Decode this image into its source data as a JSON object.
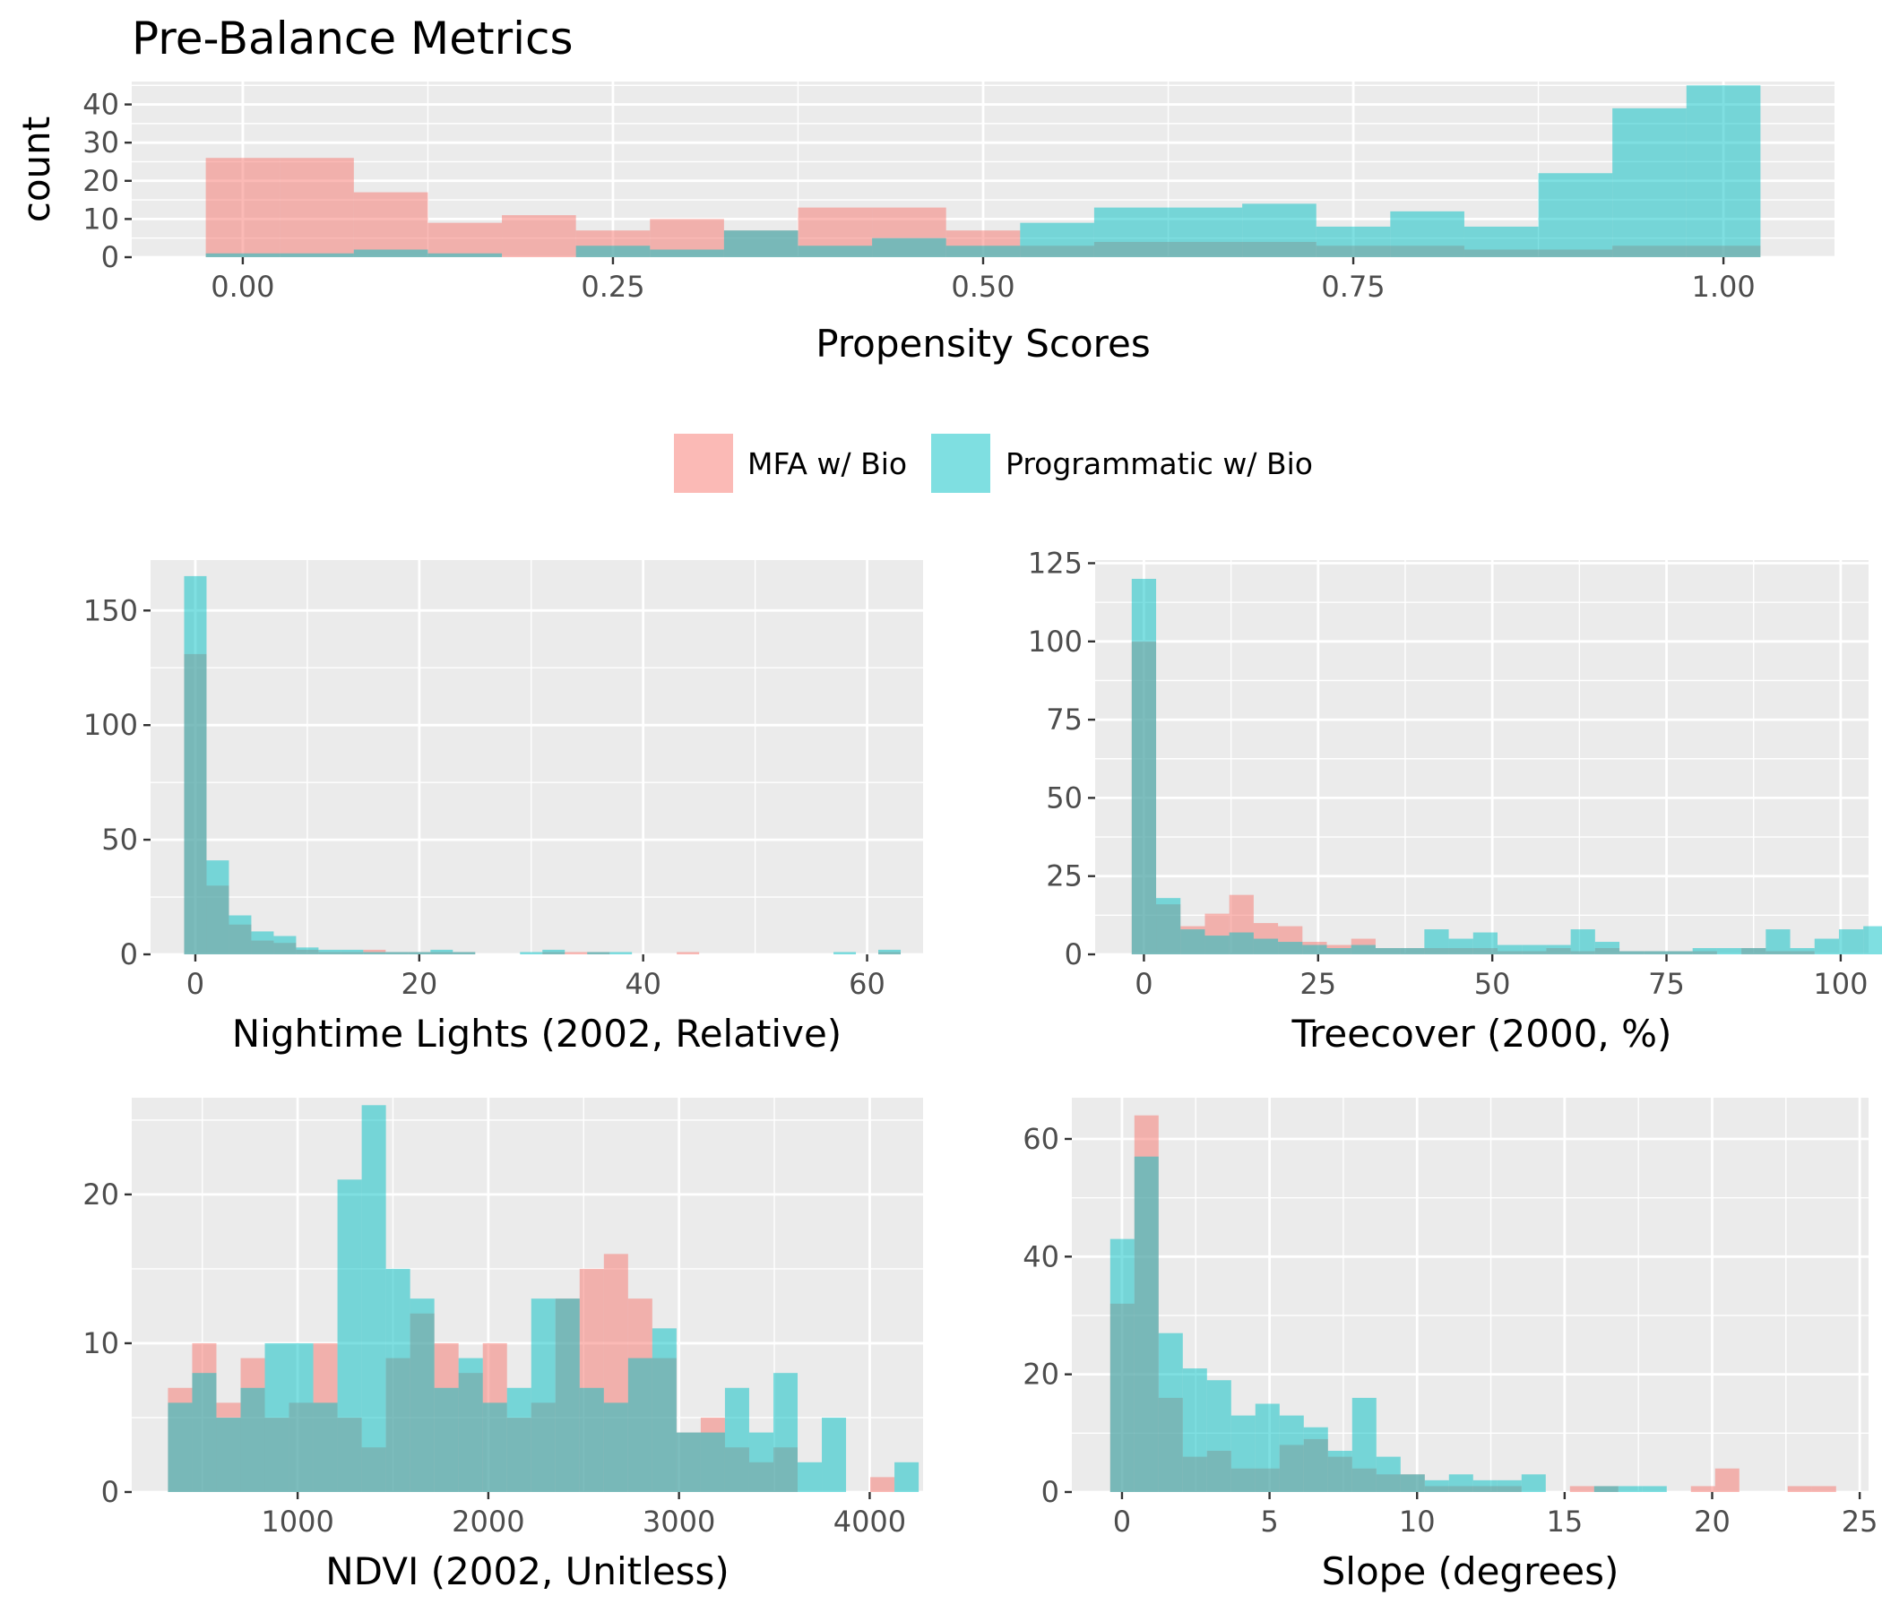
{
  "title": "Pre-Balance Metrics",
  "colors": {
    "mfa": "#F8766D",
    "programmatic": "#00BFC4",
    "panel_bg": "#EBEBEB",
    "grid": "#FFFFFF"
  },
  "legend": {
    "placement": "center",
    "items": [
      {
        "key": "mfa",
        "label": "MFA w/ Bio"
      },
      {
        "key": "programmatic",
        "label": "Programmatic w/ Bio"
      }
    ]
  },
  "chart_data": [
    {
      "type": "bar",
      "subtype": "histogram",
      "xlabel": "Propensity Scores",
      "ylabel": "count",
      "xlim": [
        -0.075,
        1.075
      ],
      "ylim": [
        0,
        46
      ],
      "xticks": [
        0,
        0.25,
        0.5,
        0.75,
        1
      ],
      "xtick_labels": [
        "0.00",
        "0.25",
        "0.50",
        "0.75",
        "1.00"
      ],
      "yticks": [
        0,
        10,
        20,
        30,
        40
      ],
      "ytick_labels": [
        "0",
        "10",
        "20",
        "30",
        "40"
      ],
      "bin_start": -0.025,
      "bin_width": 0.05,
      "series": [
        {
          "name": "MFA w/ Bio",
          "key": "mfa",
          "values": [
            26,
            26,
            17,
            9,
            11,
            7,
            10,
            7,
            13,
            13,
            7,
            3,
            4,
            4,
            4,
            3,
            3,
            2,
            2,
            3,
            3
          ]
        },
        {
          "name": "Programmatic w/ Bio",
          "key": "programmatic",
          "values": [
            1,
            1,
            2,
            1,
            0,
            3,
            2,
            7,
            3,
            5,
            3,
            9,
            13,
            13,
            14,
            8,
            12,
            8,
            22,
            39,
            45
          ]
        }
      ]
    },
    {
      "type": "bar",
      "subtype": "histogram",
      "xlabel": "Nightime Lights (2002, Relative)",
      "xlim": [
        -4,
        65
      ],
      "ylim": [
        0,
        172
      ],
      "xticks": [
        0,
        20,
        40,
        60
      ],
      "xtick_labels": [
        "0",
        "20",
        "40",
        "60"
      ],
      "yticks": [
        0,
        50,
        100,
        150
      ],
      "ytick_labels": [
        "0",
        "50",
        "100",
        "150"
      ],
      "bin_start": -1,
      "bin_width": 2,
      "series": [
        {
          "name": "MFA w/ Bio",
          "key": "mfa",
          "values": [
            131,
            30,
            13,
            6,
            5,
            2,
            1,
            1,
            2,
            1,
            1,
            1,
            1,
            0,
            0,
            0,
            1,
            1,
            1,
            0,
            0,
            0,
            1,
            0,
            0,
            0,
            0,
            0,
            0,
            0,
            0,
            1
          ]
        },
        {
          "name": "Programmatic w/ Bio",
          "key": "programmatic",
          "values": [
            165,
            41,
            17,
            10,
            8,
            3,
            2,
            2,
            1,
            1,
            1,
            2,
            1,
            0,
            0,
            1,
            2,
            0,
            1,
            1,
            0,
            0,
            0,
            0,
            0,
            0,
            0,
            0,
            0,
            1,
            0,
            2
          ]
        }
      ]
    },
    {
      "type": "bar",
      "subtype": "histogram",
      "xlabel": "Treecover (2000, %)",
      "xlim": [
        -7,
        104
      ],
      "ylim": [
        0,
        126
      ],
      "xticks": [
        0,
        25,
        50,
        75,
        100
      ],
      "xtick_labels": [
        "0",
        "25",
        "50",
        "75",
        "100"
      ],
      "yticks": [
        0,
        25,
        50,
        75,
        100,
        125
      ],
      "ytick_labels": [
        "0",
        "25",
        "50",
        "75",
        "100",
        "125"
      ],
      "bin_start": -1.75,
      "bin_width": 3.5,
      "series": [
        {
          "name": "MFA w/ Bio",
          "key": "mfa",
          "values": [
            100,
            16,
            9,
            13,
            19,
            10,
            9,
            4,
            3,
            5,
            2,
            2,
            2,
            2,
            2,
            1,
            1,
            2,
            1,
            2,
            1,
            1,
            1,
            1,
            0,
            2,
            1,
            1,
            0,
            0,
            0,
            0,
            0
          ]
        },
        {
          "name": "Programmatic w/ Bio",
          "key": "programmatic",
          "values": [
            120,
            18,
            8,
            6,
            7,
            5,
            4,
            3,
            2,
            3,
            2,
            2,
            8,
            5,
            7,
            3,
            3,
            3,
            8,
            4,
            1,
            1,
            1,
            2,
            2,
            2,
            8,
            2,
            5,
            8,
            9,
            0,
            5
          ]
        }
      ]
    },
    {
      "type": "bar",
      "subtype": "histogram",
      "xlabel": "NDVI (2002, Unitless)",
      "xlim": [
        130,
        4280
      ],
      "ylim": [
        0,
        26.5
      ],
      "xticks": [
        1000,
        2000,
        3000,
        4000
      ],
      "xtick_labels": [
        "1000",
        "2000",
        "3000",
        "4000"
      ],
      "yticks": [
        0,
        10,
        20
      ],
      "ytick_labels": [
        "0",
        "10",
        "20"
      ],
      "bin_start": 320,
      "bin_width": 127,
      "series": [
        {
          "name": "MFA w/ Bio",
          "key": "mfa",
          "values": [
            7,
            10,
            6,
            9,
            5,
            6,
            10,
            5,
            3,
            9,
            12,
            10,
            8,
            10,
            5,
            6,
            13,
            15,
            16,
            13,
            9,
            4,
            5,
            3,
            2,
            3,
            0,
            0,
            0,
            1,
            0
          ]
        },
        {
          "name": "Programmatic w/ Bio",
          "key": "programmatic",
          "values": [
            6,
            8,
            5,
            7,
            10,
            10,
            6,
            21,
            26,
            15,
            13,
            7,
            9,
            6,
            7,
            13,
            13,
            7,
            6,
            9,
            11,
            4,
            4,
            7,
            4,
            8,
            2,
            5,
            0,
            0,
            2
          ]
        }
      ]
    },
    {
      "type": "bar",
      "subtype": "histogram",
      "xlabel": "Slope (degrees)",
      "xlim": [
        -1.7,
        25.3
      ],
      "ylim": [
        0,
        67
      ],
      "xticks": [
        0,
        5,
        10,
        15,
        20,
        25
      ],
      "xtick_labels": [
        "0",
        "5",
        "10",
        "15",
        "20",
        "25"
      ],
      "yticks": [
        0,
        20,
        40,
        60
      ],
      "ytick_labels": [
        "0",
        "20",
        "40",
        "60"
      ],
      "bin_start": -0.4,
      "bin_width": 0.82,
      "series": [
        {
          "name": "MFA w/ Bio",
          "key": "mfa",
          "values": [
            32,
            64,
            16,
            6,
            7,
            4,
            4,
            8,
            9,
            6,
            4,
            3,
            3,
            1,
            1,
            1,
            1,
            0,
            0,
            1,
            1,
            0,
            0,
            0,
            1,
            4,
            0,
            0,
            1,
            1
          ]
        },
        {
          "name": "Programmatic w/ Bio",
          "key": "programmatic",
          "values": [
            43,
            57,
            27,
            21,
            19,
            13,
            15,
            13,
            11,
            7,
            16,
            6,
            3,
            2,
            3,
            2,
            2,
            3,
            0,
            0,
            1,
            1,
            1,
            0,
            0,
            0,
            0,
            0,
            0,
            0
          ]
        }
      ]
    }
  ]
}
